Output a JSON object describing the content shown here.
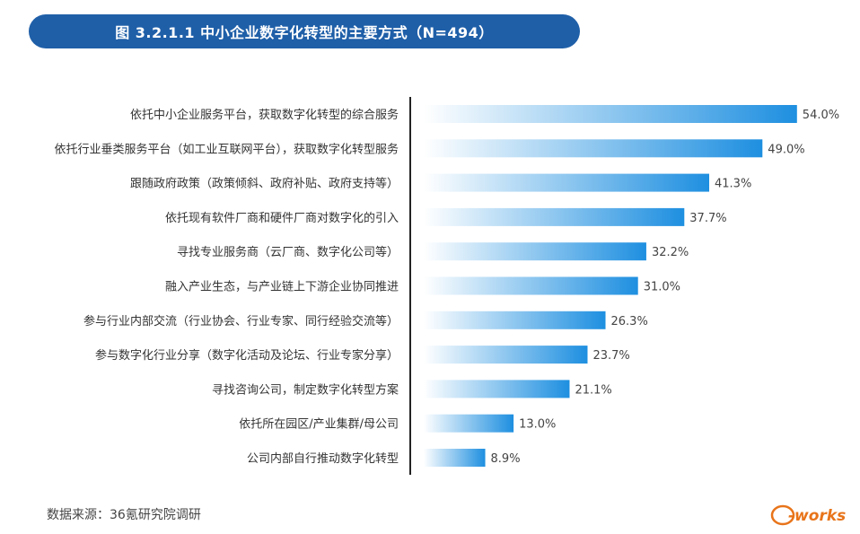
{
  "header": {
    "title": "图 3.2.1.1 中小企业数字化转型的主要方式（N=494）"
  },
  "chart_data": {
    "type": "bar",
    "orientation": "horizontal",
    "categories": [
      "依托中小企业服务平台，获取数字化转型的综合服务",
      "依托行业垂类服务平台（如工业互联网平台），获取数字化转型服务",
      "跟随政府政策（政策倾斜、政府补贴、政府支持等）",
      "依托现有软件厂商和硬件厂商对数字化的引入",
      "寻找专业服务商（云厂商、数字化公司等）",
      "融入产业生态，与产业链上下游企业协同推进",
      "参与行业内部交流（行业协会、行业专家、同行经验交流等）",
      "参与数字化行业分享（数字化活动及论坛、行业专家分享）",
      "寻找咨询公司，制定数字化转型方案",
      "依托所在园区/产业集群/母公司",
      "公司内部自行推动数字化转型"
    ],
    "values": [
      54.0,
      49.0,
      41.3,
      37.7,
      32.2,
      31.0,
      26.3,
      23.7,
      21.1,
      13.0,
      8.9
    ],
    "value_labels": [
      "54.0%",
      "49.0%",
      "41.3%",
      "37.7%",
      "32.2%",
      "31.0%",
      "26.3%",
      "23.7%",
      "21.1%",
      "13.0%",
      "8.9%"
    ],
    "unit": "%",
    "xlim": [
      0,
      60
    ],
    "grid": false,
    "bar_color_start": "#ffffff",
    "bar_color_end": "#1e8fe0"
  },
  "footer": {
    "source": "数据来源：36氪研究院调研",
    "logo_text": "e-works"
  },
  "colors": {
    "banner": "#1f5fa8",
    "axis": "#222222",
    "logo": "#e8741a"
  }
}
